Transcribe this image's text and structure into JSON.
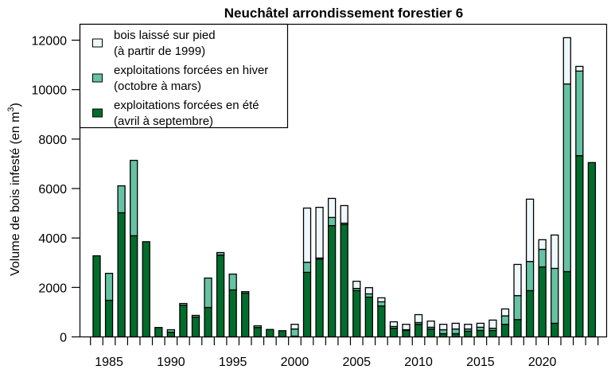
{
  "chart_data": {
    "type": "bar",
    "stacked": true,
    "title": "Neuchâtel arrondissement forestier 6",
    "xlabel": "",
    "ylabel": "Volume de bois infesté (en m³)",
    "ylabel_main": "Volume de bois infesté (en m",
    "ylabel_sup": "3",
    "ylabel_end": ")",
    "ylim": [
      0,
      12000
    ],
    "yticks": [
      0,
      2000,
      4000,
      6000,
      8000,
      10000,
      12000
    ],
    "xtick_labels": [
      "1985",
      "1990",
      "1995",
      "2000",
      "2005",
      "2010",
      "2015",
      "2020"
    ],
    "x": [
      1984,
      1985,
      1986,
      1987,
      1988,
      1989,
      1990,
      1991,
      1992,
      1993,
      1994,
      1995,
      1996,
      1997,
      1998,
      1999,
      2000,
      2001,
      2002,
      2003,
      2004,
      2005,
      2006,
      2007,
      2008,
      2009,
      2010,
      2011,
      2012,
      2013,
      2014,
      2015,
      2016,
      2017,
      2018,
      2019,
      2020,
      2021,
      2022,
      2023,
      2024
    ],
    "legend_position": "top-left",
    "series": [
      {
        "name": "exploitations forcées en été",
        "name_line2": "(avril à septembre)",
        "color": "#006D2C",
        "values": [
          3280,
          1480,
          5020,
          4090,
          3850,
          380,
          190,
          1280,
          800,
          1190,
          3310,
          1900,
          1770,
          380,
          300,
          250,
          30,
          2610,
          3150,
          4500,
          4540,
          1870,
          1610,
          1250,
          350,
          260,
          510,
          320,
          130,
          130,
          230,
          260,
          260,
          510,
          700,
          1870,
          2830,
          550,
          2640,
          7330,
          7050
        ]
      },
      {
        "name": "exploitations forcées en hiver",
        "name_line2": "(octobre à mars)",
        "color": "#66C2A4",
        "values": [
          0,
          1090,
          1090,
          3050,
          0,
          0,
          100,
          70,
          70,
          1190,
          100,
          640,
          60,
          70,
          0,
          0,
          290,
          410,
          40,
          330,
          60,
          90,
          130,
          170,
          70,
          30,
          70,
          70,
          160,
          190,
          90,
          130,
          90,
          340,
          970,
          1180,
          710,
          2220,
          7590,
          3420,
          0
        ]
      },
      {
        "name": "bois laissé sur pied",
        "name_line2": "(à partir de 1999)",
        "color": "#EFF8FA",
        "values": [
          0,
          0,
          0,
          0,
          0,
          0,
          0,
          0,
          0,
          0,
          0,
          0,
          0,
          0,
          0,
          0,
          190,
          2190,
          2050,
          770,
          710,
          290,
          250,
          160,
          190,
          220,
          320,
          250,
          220,
          230,
          190,
          160,
          330,
          280,
          1260,
          2520,
          390,
          1350,
          1870,
          190,
          0
        ]
      }
    ]
  }
}
